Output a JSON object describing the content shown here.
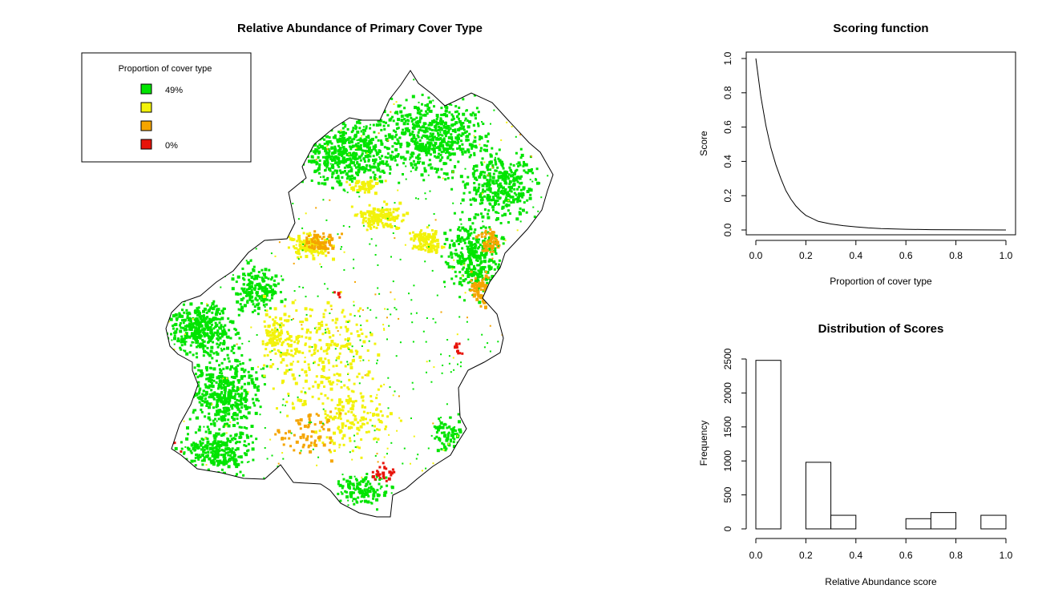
{
  "colors": {
    "green": "#00e400",
    "yellow": "#f2f20a",
    "orange": "#f5a500",
    "red": "#e8140a",
    "outline": "#000000"
  },
  "chart_data": [
    {
      "type": "map",
      "title": "Relative Abundance of Primary Cover Type",
      "legend": {
        "title": "Proportion of cover type",
        "placement": "top-left",
        "entries": [
          {
            "label": "49%",
            "color": "#00e400"
          },
          {
            "label": "",
            "color": "#f2f20a"
          },
          {
            "label": "",
            "color": "#f5a500"
          },
          {
            "label": "0%",
            "color": "#e8140a"
          }
        ]
      }
    },
    {
      "type": "line",
      "title": "Scoring function",
      "xlabel": "Proportion of cover type",
      "ylabel": "Score",
      "xlim": [
        0,
        1
      ],
      "ylim": [
        0,
        1
      ],
      "xticks": [
        "0.0",
        "0.2",
        "0.4",
        "0.6",
        "0.8",
        "1.0"
      ],
      "yticks": [
        "0.0",
        "0.2",
        "0.4",
        "0.6",
        "0.8",
        "1.0"
      ],
      "x": [
        0,
        0.02,
        0.04,
        0.06,
        0.08,
        0.1,
        0.12,
        0.14,
        0.16,
        0.18,
        0.2,
        0.25,
        0.3,
        0.35,
        0.4,
        0.45,
        0.5,
        0.6,
        0.7,
        0.8,
        0.9,
        1.0
      ],
      "y": [
        1.0,
        0.78,
        0.61,
        0.48,
        0.38,
        0.3,
        0.23,
        0.18,
        0.14,
        0.11,
        0.085,
        0.05,
        0.035,
        0.025,
        0.018,
        0.012,
        0.008,
        0.004,
        0.002,
        0.001,
        0.0005,
        0.0
      ]
    },
    {
      "type": "bar",
      "subtype": "histogram",
      "title": "Distribution of Scores",
      "xlabel": "Relative Abundance score",
      "ylabel": "Frequency",
      "xlim": [
        0,
        1
      ],
      "ylim": [
        0,
        2500
      ],
      "xticks": [
        "0.0",
        "0.2",
        "0.4",
        "0.6",
        "0.8",
        "1.0"
      ],
      "yticks": [
        "0",
        "500",
        "1000",
        "1500",
        "2000",
        "2500"
      ],
      "bins": [
        {
          "x0": 0.0,
          "x1": 0.1,
          "value": 2480
        },
        {
          "x0": 0.1,
          "x1": 0.2,
          "value": 0
        },
        {
          "x0": 0.2,
          "x1": 0.3,
          "value": 980
        },
        {
          "x0": 0.3,
          "x1": 0.4,
          "value": 200
        },
        {
          "x0": 0.4,
          "x1": 0.5,
          "value": 0
        },
        {
          "x0": 0.5,
          "x1": 0.6,
          "value": 0
        },
        {
          "x0": 0.6,
          "x1": 0.7,
          "value": 150
        },
        {
          "x0": 0.7,
          "x1": 0.8,
          "value": 240
        },
        {
          "x0": 0.8,
          "x1": 0.9,
          "value": 0
        },
        {
          "x0": 0.9,
          "x1": 1.0,
          "value": 200
        }
      ]
    }
  ]
}
